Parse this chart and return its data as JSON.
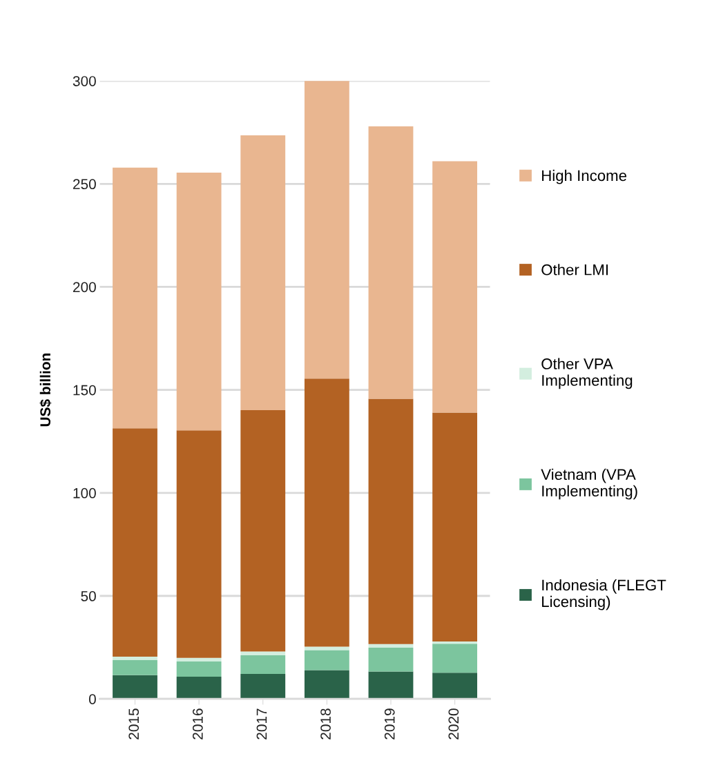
{
  "chart_data": {
    "type": "bar",
    "stacked": true,
    "ylabel": "US$ billion",
    "categories": [
      "2015",
      "2016",
      "2017",
      "2018",
      "2019",
      "2020"
    ],
    "series": [
      {
        "name": "Indonesia (FLEGT\nLicensing)",
        "color": "#2a6349",
        "values": [
          11.5,
          10.8,
          12.1,
          14.0,
          13.3,
          12.7
        ]
      },
      {
        "name": "Vietnam (VPA\nImplementing)",
        "color": "#7cc59e",
        "values": [
          7.3,
          7.4,
          9.1,
          9.7,
          11.6,
          14.1
        ]
      },
      {
        "name": "Other VPA\nImplementing",
        "color": "#d3eedf",
        "values": [
          1.7,
          1.7,
          1.8,
          1.7,
          1.7,
          1.1
        ]
      },
      {
        "name": "Other LMI",
        "color": "#b36223",
        "values": [
          110.9,
          110.5,
          117.2,
          130.1,
          119.1,
          111.1
        ]
      },
      {
        "name": "High Income",
        "color": "#e9b690",
        "values": [
          126.5,
          125.1,
          133.4,
          145.0,
          132.2,
          122.0
        ]
      }
    ],
    "ylim": [
      0,
      300
    ],
    "yticks": [
      0,
      50,
      100,
      150,
      200,
      250,
      300
    ],
    "grid": "y",
    "legend": "right"
  }
}
